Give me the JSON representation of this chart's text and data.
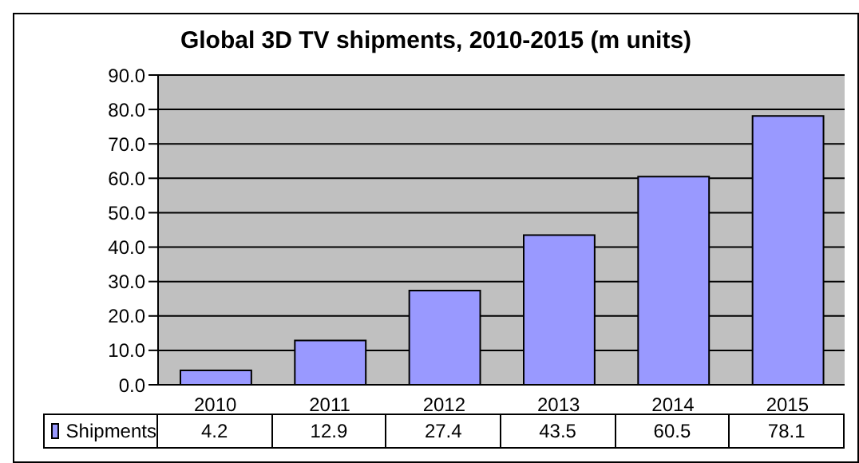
{
  "chart_data": {
    "type": "bar",
    "title": "Global 3D TV shipments, 2010-2015 (m units)",
    "categories": [
      "2010",
      "2011",
      "2012",
      "2013",
      "2014",
      "2015"
    ],
    "series": [
      {
        "name": "Shipments",
        "color": "#9999ff",
        "values": [
          4.2,
          12.9,
          27.4,
          43.5,
          60.5,
          78.1
        ]
      }
    ],
    "ylim": [
      0,
      90
    ],
    "yticks": [
      {
        "value": 0,
        "label": "0.0"
      },
      {
        "value": 10,
        "label": "10.0"
      },
      {
        "value": 20,
        "label": "20.0"
      },
      {
        "value": 30,
        "label": "30.0"
      },
      {
        "value": 40,
        "label": "40.0"
      },
      {
        "value": 50,
        "label": "50.0"
      },
      {
        "value": 60,
        "label": "60.0"
      },
      {
        "value": 70,
        "label": "70.0"
      },
      {
        "value": 80,
        "label": "80.0"
      },
      {
        "value": 90,
        "label": "90.0"
      }
    ],
    "grid": "y",
    "legend": "bottom left",
    "data_labels": true
  }
}
